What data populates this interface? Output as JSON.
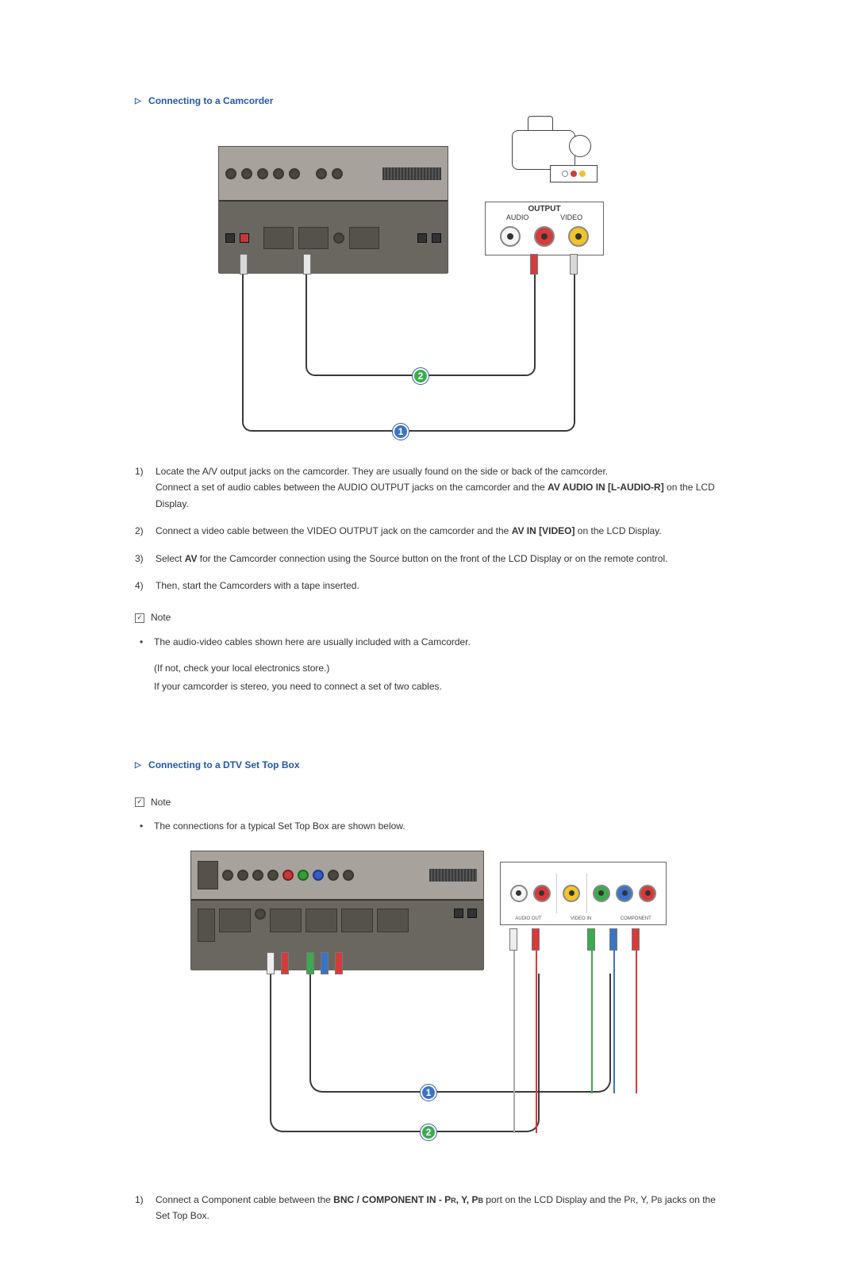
{
  "sections": {
    "camcorder": {
      "title": "Connecting to a Camcorder",
      "diagram": {
        "badges": {
          "b1": "1",
          "b2": "2"
        },
        "output_box": {
          "header": "OUTPUT",
          "left_label": "AUDIO",
          "right_label": "VIDEO",
          "jack_colors": [
            "#f5f5f5",
            "#d63b3b",
            "#f2c428"
          ]
        },
        "cam_ports_label": "OUTPUT\nAUDIO · VIDEO",
        "panel_bg_top": "#a7a39c",
        "panel_bg_bottom": "#6a6760",
        "cable_color": "#3a3a3a"
      },
      "steps": [
        {
          "num": "1)",
          "body_parts": [
            {
              "text": "Locate the A/V output jacks on the camcorder. They are usually found on the side or back of the camcorder.",
              "bold": false
            },
            {
              "br": true
            },
            {
              "text": "Connect a set of audio cables between the AUDIO OUTPUT jacks on the camcorder and the ",
              "bold": false
            },
            {
              "text": "AV AUDIO IN [L-AUDIO-R]",
              "bold": true
            },
            {
              "text": " on the LCD Display.",
              "bold": false
            }
          ]
        },
        {
          "num": "2)",
          "body_parts": [
            {
              "text": "Connect a video cable between the VIDEO OUTPUT jack on the camcorder and the ",
              "bold": false
            },
            {
              "text": "AV IN [VIDEO]",
              "bold": true
            },
            {
              "text": " on the LCD Display.",
              "bold": false
            }
          ]
        },
        {
          "num": "3)",
          "body_parts": [
            {
              "text": "Select ",
              "bold": false
            },
            {
              "text": "AV",
              "bold": true
            },
            {
              "text": " for the Camcorder connection using the Source button on the front of the LCD Display or on the remote control.",
              "bold": false
            }
          ]
        },
        {
          "num": "4)",
          "body_parts": [
            {
              "text": "Then, start the Camcorders with a tape inserted.",
              "bold": false
            }
          ]
        }
      ],
      "note_label": "Note",
      "note_bullet": "The audio-video cables shown here are usually included with a Camcorder.",
      "note_extra_1": "(If not, check your local electronics store.)",
      "note_extra_2": "If your camcorder is stereo, you need to connect a set of two cables."
    },
    "dtv": {
      "title": "Connecting to a DTV Set Top Box",
      "note_label": "Note",
      "note_bullet": "The connections for a typical Set Top Box are shown below.",
      "diagram": {
        "badges": {
          "b1": "1",
          "b2": "2"
        },
        "stb_jack_colors": [
          "#f5f5f5",
          "#d63b3b",
          "#3bab4f",
          "#3b73c6",
          "#d63b3b"
        ],
        "stb_section_labels": [
          "AUDIO OUT",
          "VIDEO IN",
          "COMPONENT"
        ],
        "panel_bg_top": "#a7a39c",
        "panel_bg_bottom": "#6a6760"
      },
      "steps": [
        {
          "num": "1)",
          "body_parts": [
            {
              "text": "Connect a Component cable between the ",
              "bold": false
            },
            {
              "text": "BNC / COMPONENT IN - P",
              "bold": true
            },
            {
              "text": "R",
              "bold": true,
              "small": true
            },
            {
              "text": ", Y, P",
              "bold": true
            },
            {
              "text": "B",
              "bold": true,
              "small": true
            },
            {
              "text": " port on the LCD Display and the P",
              "bold": false
            },
            {
              "text": "R",
              "bold": false,
              "small": true
            },
            {
              "text": ", Y, P",
              "bold": false
            },
            {
              "text": "B",
              "bold": false,
              "small": true
            },
            {
              "text": " jacks on the Set Top Box.",
              "bold": false
            }
          ]
        }
      ]
    }
  },
  "colors": {
    "heading": "#2256b6",
    "text": "#333333",
    "badge_blue": "#3b73c6",
    "badge_green": "#3bab4f"
  }
}
